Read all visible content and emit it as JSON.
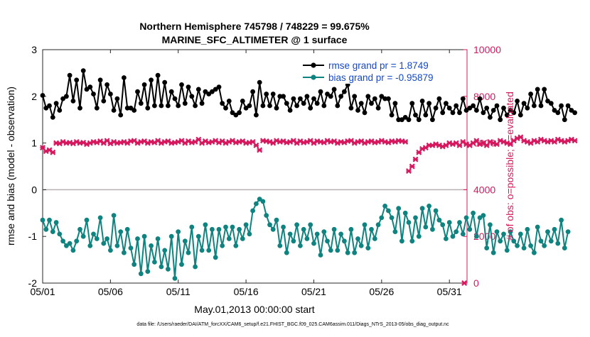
{
  "chart_data": {
    "type": "line",
    "title": [
      "Northern Hemisphere 745798 / 748229 = 99.675%",
      "MARINE_SFC_ALTIMETER @ 1 surface"
    ],
    "xlabel": "May.01,2013 00:00:00 start",
    "ylabel_left": "rmse and bias (model - observation)",
    "ylabel_right": "# of obs: o=possible; ×=evaluated",
    "footer": "data file: /Users/raeder/DAI/ATM_forcXX/CAM6_setup/f.e21.FHIST_BGC.f09_025.CAM6assim.011/Diags_NTrS_2013-05/obs_diag_output.nc",
    "xlim": [
      1,
      32.3
    ],
    "x_ticks": [
      1,
      6,
      11,
      16,
      21,
      26,
      31
    ],
    "x_tick_labels": [
      "05/01",
      "05/06",
      "05/11",
      "05/16",
      "05/21",
      "05/26",
      "05/31"
    ],
    "ylim_left": [
      -2,
      3
    ],
    "y_ticks_left": [
      -2,
      -1,
      0,
      1,
      2,
      3
    ],
    "y_tick_labels_left": [
      "-2",
      "-1",
      "0",
      "1",
      "2",
      "3"
    ],
    "ylim_right": [
      0,
      10000
    ],
    "y_ticks_right": [
      0,
      2000,
      4000,
      6000,
      8000,
      10000
    ],
    "y_tick_labels_right": [
      "0",
      "2000",
      "4000",
      "6000",
      "8000",
      "10000"
    ],
    "zero_line": 0,
    "legend": {
      "position": "top-right",
      "entries": [
        "rmse grand pr = 1.8749",
        "bias grand pr = -0.95879"
      ]
    },
    "colors": {
      "rmse": "#000000",
      "bias": "#0f837f",
      "obs": "#d6185e",
      "axis_right": "#d6185e",
      "zero_line": "#b9b1b1",
      "legend_text": "#1448cc"
    },
    "series": [
      {
        "name": "rmse",
        "axis": "left",
        "x0": 1.0,
        "dx": 0.25,
        "values": [
          2.02,
          1.75,
          1.8,
          1.55,
          1.85,
          1.7,
          1.95,
          2.0,
          2.45,
          1.9,
          2.35,
          1.75,
          2.55,
          2.15,
          2.2,
          2.05,
          1.75,
          2.35,
          1.9,
          2.25,
          2.05,
          1.7,
          1.95,
          1.6,
          2.4,
          1.75,
          1.75,
          1.7,
          2.1,
          1.85,
          2.25,
          1.75,
          2.35,
          1.8,
          2.45,
          1.8,
          2.3,
          1.8,
          2.1,
          1.95,
          1.8,
          2.25,
          1.85,
          2.2,
          2.0,
          1.8,
          2.15,
          1.85,
          2.1,
          2.05,
          2.1,
          2.15,
          2.2,
          1.85,
          1.75,
          1.9,
          1.65,
          1.6,
          1.65,
          1.9,
          1.75,
          1.8,
          2.1,
          1.6,
          2.3,
          1.8,
          2.05,
          1.8,
          2.05,
          1.75,
          2.0,
          2.0,
          1.85,
          1.7,
          1.95,
          1.8,
          1.95,
          1.85,
          2.0,
          1.75,
          1.95,
          1.85,
          2.1,
          1.8,
          2.05,
          2.0,
          2.15,
          1.8,
          2.0,
          2.1,
          2.25,
          1.75,
          2.0,
          1.7,
          1.85,
          1.65,
          2.0,
          1.85,
          1.95,
          1.75,
          2.0,
          1.95,
          1.95,
          1.6,
          1.85,
          1.5,
          1.5,
          1.55,
          1.5,
          1.85,
          1.6,
          1.5,
          1.9,
          1.6,
          1.85,
          1.5,
          1.75,
          1.95,
          1.65,
          1.85,
          1.75,
          1.65,
          1.8,
          1.65,
          1.95,
          1.7,
          1.75,
          1.8,
          1.7,
          1.95,
          1.65,
          1.75,
          1.55,
          1.7,
          1.8,
          1.5,
          1.75,
          1.6,
          1.7,
          1.65,
          1.9,
          1.6,
          1.85,
          1.75,
          2.05,
          1.8,
          2.15,
          1.8,
          2.15,
          1.9,
          1.85,
          1.7,
          1.65,
          1.8,
          1.5,
          1.8,
          1.7,
          1.65
        ]
      },
      {
        "name": "bias",
        "axis": "left",
        "x0": 1.0,
        "dx": 0.25,
        "values": [
          -0.65,
          -0.85,
          -0.65,
          -0.9,
          -0.7,
          -0.95,
          -1.1,
          -1.2,
          -1.15,
          -1.3,
          -1.1,
          -0.85,
          -1.0,
          -0.65,
          -1.2,
          -0.95,
          -1.05,
          -0.6,
          -1.15,
          -1.05,
          -1.3,
          -0.55,
          -1.2,
          -0.9,
          -1.35,
          -0.85,
          -1.25,
          -1.6,
          -1.05,
          -1.8,
          -1.0,
          -1.75,
          -1.2,
          -1.55,
          -1.05,
          -1.65,
          -1.3,
          -1.7,
          -1.0,
          -1.9,
          -0.9,
          -1.6,
          -1.1,
          -1.35,
          -0.8,
          -1.65,
          -1.0,
          -1.3,
          -0.75,
          -1.3,
          -0.85,
          -1.45,
          -0.85,
          -1.2,
          -0.8,
          -1.05,
          -0.8,
          -1.2,
          -0.85,
          -1.05,
          -0.75,
          -0.95,
          -0.45,
          -0.3,
          -0.2,
          -0.25,
          -0.55,
          -0.75,
          -0.85,
          -0.65,
          -1.2,
          -0.8,
          -1.35,
          -0.95,
          -1.1,
          -0.75,
          -1.2,
          -0.85,
          -1.05,
          -0.75,
          -1.15,
          -0.95,
          -1.4,
          -0.9,
          -1.1,
          -1.3,
          -0.85,
          -1.3,
          -0.95,
          -1.1,
          -1.35,
          -0.85,
          -1.35,
          -1.05,
          -1.2,
          -0.75,
          -1.25,
          -0.85,
          -1.05,
          -0.75,
          -0.6,
          -0.35,
          -0.45,
          -0.6,
          -0.9,
          -0.4,
          -1.1,
          -0.5,
          -0.7,
          -1.1,
          -0.6,
          -1.0,
          -0.4,
          -0.8,
          -0.35,
          -0.85,
          -0.45,
          -0.65,
          -0.75,
          -1.05,
          -0.7,
          -1.0,
          -0.9,
          -0.7,
          -0.95,
          -0.6,
          -0.85,
          -0.5,
          -1.0,
          -0.6,
          -0.55,
          -1.25,
          -0.75,
          -1.35,
          -0.9,
          -1.1,
          -0.95,
          -1.3,
          -0.9,
          -1.1,
          -1.2,
          -0.95,
          -1.25,
          -0.85,
          -1.2,
          -1.35,
          -0.8,
          -1.1,
          -1.2,
          -0.9,
          -1.1,
          -0.85,
          -1.15,
          -0.65,
          -1.25,
          -0.9
        ]
      },
      {
        "name": "obs evaluated",
        "axis": "right",
        "x0": 1.0,
        "dx": 0.25,
        "values": [
          5800,
          5650,
          5700,
          5600,
          6000,
          5980,
          6050,
          6000,
          6020,
          5980,
          6050,
          6000,
          6020,
          5950,
          6000,
          6050,
          6020,
          6080,
          6000,
          6100,
          5980,
          6050,
          6000,
          6020,
          6050,
          6000,
          6080,
          6100,
          6000,
          6050,
          6080,
          6000,
          6050,
          6020,
          6100,
          6000,
          6050,
          6080,
          6000,
          6020,
          6050,
          6100,
          6000,
          6080,
          6020,
          6050,
          6150,
          6000,
          6080,
          6020,
          6050,
          6100,
          6020,
          6080,
          6000,
          6050,
          6100,
          6020,
          6050,
          6080,
          6000,
          6020,
          6050,
          5900,
          5700,
          6100,
          6080,
          6050,
          6000,
          6100,
          6050,
          6080,
          6020,
          6050,
          6100,
          6000,
          6080,
          6020,
          6050,
          6100,
          6000,
          6080,
          6050,
          6020,
          6100,
          6050,
          6080,
          6000,
          6050,
          6020,
          6080,
          6100,
          6000,
          6050,
          6080,
          6000,
          6050,
          6080,
          6020,
          6050,
          6100,
          6050,
          6020,
          6080,
          6050,
          6100,
          6080,
          6050,
          4800,
          5000,
          5300,
          5600,
          5750,
          5800,
          5900,
          5900,
          5950,
          5900,
          5850,
          5900,
          6000,
          5950,
          6000,
          5900,
          6050,
          5950,
          5900,
          6000,
          6100,
          5950,
          6000,
          5900,
          6050,
          6000,
          5950,
          6100,
          6050,
          6000,
          5950,
          6100,
          6200,
          6250,
          6100,
          6050,
          6000,
          6100,
          6050,
          6150,
          6100,
          6050,
          6100,
          6050,
          6150,
          6100,
          6050,
          6100,
          6150,
          6100
        ],
        "extra_points": [
          {
            "x": 32.1,
            "y": 0
          }
        ]
      }
    ]
  }
}
